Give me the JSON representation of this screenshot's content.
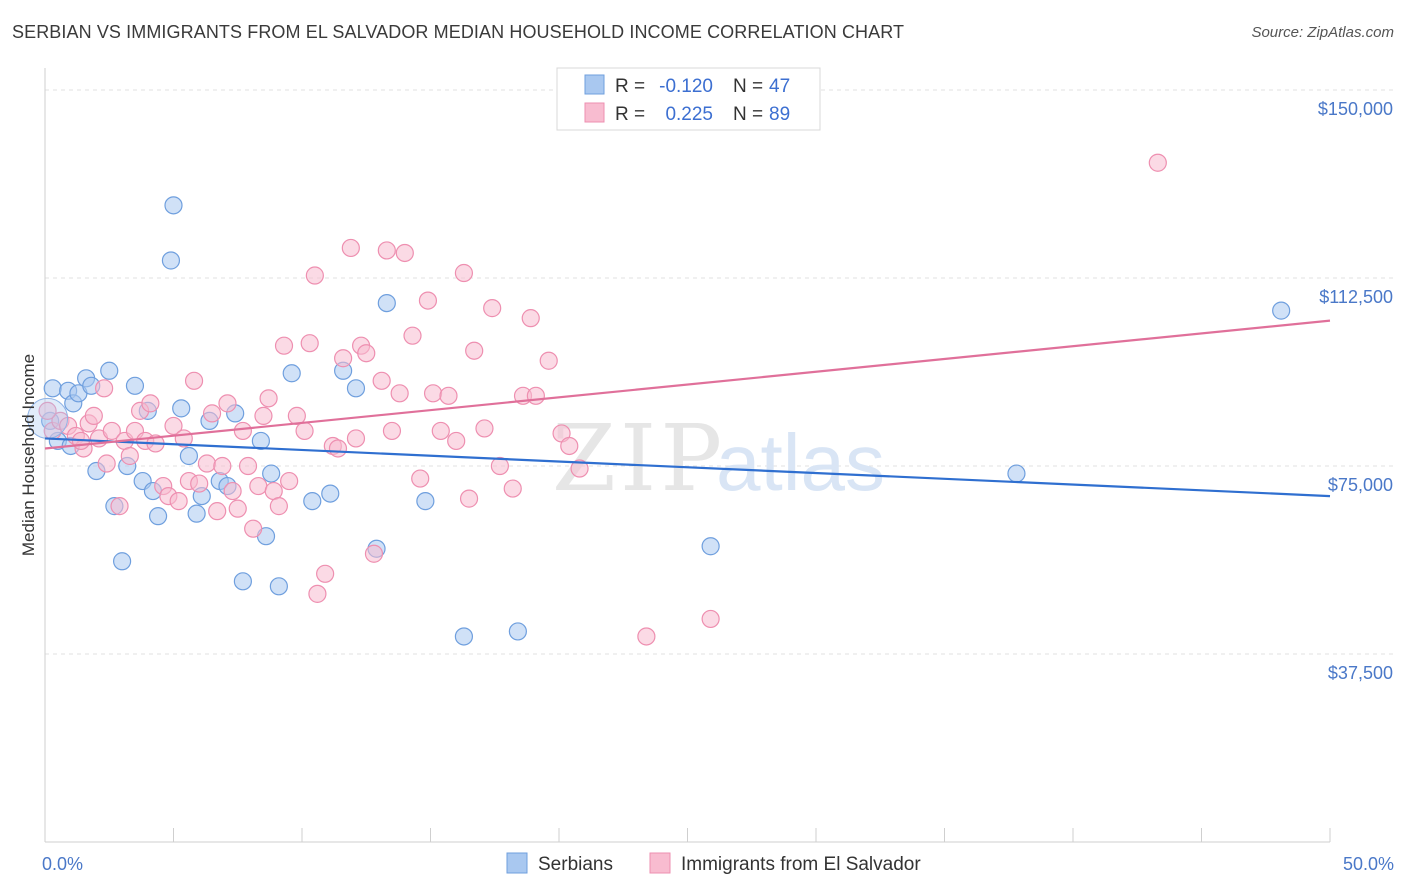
{
  "title": "SERBIAN VS IMMIGRANTS FROM EL SALVADOR MEDIAN HOUSEHOLD INCOME CORRELATION CHART",
  "source": "Source: ZipAtlas.com",
  "watermark": {
    "zip": "ZIP",
    "atlas": "atlas"
  },
  "chart_data": {
    "type": "scatter",
    "ylabel": "Median Household Income",
    "xlim": [
      0,
      50
    ],
    "ylim": [
      0,
      153000
    ],
    "x_tick_labels": [
      "0.0%",
      "50.0%"
    ],
    "y_ticks": [
      {
        "value": 37500,
        "label": "$37,500"
      },
      {
        "value": 75000,
        "label": "$75,000"
      },
      {
        "value": 112500,
        "label": "$112,500"
      },
      {
        "value": 150000,
        "label": "$150,000"
      }
    ],
    "grid": true,
    "legend": [
      {
        "series": "Serbians",
        "r_label": "R =",
        "r_value": "-0.120",
        "n_label": "N =",
        "n_value": "47",
        "color": "#a9c8f0",
        "stroke": "#6f9fde"
      },
      {
        "series": "Immigrants from El Salvador",
        "r_label": "R =",
        "r_value": "0.225",
        "n_label": "N =",
        "n_value": "89",
        "color": "#f8bcd0",
        "stroke": "#ee8fb0"
      }
    ],
    "series": [
      {
        "name": "Serbians",
        "color": "#a9c8f0",
        "stroke": "#6f9fde",
        "trend": {
          "x": [
            0,
            50
          ],
          "y": [
            80500,
            69000
          ],
          "color": "#2f6fd0"
        },
        "points": [
          [
            0.2,
            84000
          ],
          [
            0.3,
            90500
          ],
          [
            0.9,
            90000
          ],
          [
            1.1,
            87500
          ],
          [
            1.3,
            89500
          ],
          [
            1.6,
            92500
          ],
          [
            1.8,
            91000
          ],
          [
            2.0,
            74000
          ],
          [
            2.5,
            94000
          ],
          [
            2.7,
            67000
          ],
          [
            3.0,
            56000
          ],
          [
            3.2,
            75000
          ],
          [
            3.5,
            91000
          ],
          [
            3.8,
            72000
          ],
          [
            4.0,
            86000
          ],
          [
            4.2,
            70000
          ],
          [
            4.4,
            65000
          ],
          [
            4.9,
            116000
          ],
          [
            5.0,
            127000
          ],
          [
            5.3,
            86500
          ],
          [
            5.6,
            77000
          ],
          [
            5.9,
            65500
          ],
          [
            6.1,
            69000
          ],
          [
            6.4,
            84000
          ],
          [
            6.8,
            72000
          ],
          [
            7.1,
            71000
          ],
          [
            7.4,
            85500
          ],
          [
            7.7,
            52000
          ],
          [
            8.4,
            80000
          ],
          [
            8.6,
            61000
          ],
          [
            8.8,
            73500
          ],
          [
            9.1,
            51000
          ],
          [
            9.6,
            93500
          ],
          [
            10.4,
            68000
          ],
          [
            11.1,
            69500
          ],
          [
            11.6,
            94000
          ],
          [
            12.1,
            90500
          ],
          [
            12.9,
            58500
          ],
          [
            13.3,
            107500
          ],
          [
            14.8,
            68000
          ],
          [
            16.3,
            41000
          ],
          [
            18.4,
            42000
          ],
          [
            25.9,
            59000
          ],
          [
            37.8,
            73500
          ],
          [
            48.1,
            106000
          ],
          [
            0.5,
            80000
          ],
          [
            1.0,
            79000
          ]
        ]
      },
      {
        "name": "Immigrants from El Salvador",
        "color": "#f8bcd0",
        "stroke": "#ee8fb0",
        "trend": {
          "x": [
            0,
            50
          ],
          "y": [
            78500,
            104000
          ],
          "color": "#e0709a"
        },
        "points": [
          [
            0.3,
            82000
          ],
          [
            0.6,
            84000
          ],
          [
            0.9,
            83000
          ],
          [
            1.2,
            81000
          ],
          [
            1.5,
            78500
          ],
          [
            1.7,
            83500
          ],
          [
            1.9,
            85000
          ],
          [
            2.1,
            80500
          ],
          [
            2.3,
            90500
          ],
          [
            2.6,
            82000
          ],
          [
            2.9,
            67000
          ],
          [
            3.1,
            80000
          ],
          [
            3.3,
            77000
          ],
          [
            3.5,
            82000
          ],
          [
            3.7,
            86000
          ],
          [
            3.9,
            80000
          ],
          [
            4.1,
            87500
          ],
          [
            4.3,
            79500
          ],
          [
            4.6,
            71000
          ],
          [
            4.8,
            69000
          ],
          [
            5.0,
            83000
          ],
          [
            5.2,
            68000
          ],
          [
            5.4,
            80500
          ],
          [
            5.6,
            72000
          ],
          [
            5.8,
            92000
          ],
          [
            6.0,
            71500
          ],
          [
            6.3,
            75500
          ],
          [
            6.5,
            85500
          ],
          [
            6.7,
            66000
          ],
          [
            6.9,
            75000
          ],
          [
            7.1,
            87500
          ],
          [
            7.3,
            70000
          ],
          [
            7.5,
            66500
          ],
          [
            7.7,
            82000
          ],
          [
            7.9,
            75000
          ],
          [
            8.1,
            62500
          ],
          [
            8.3,
            71000
          ],
          [
            8.5,
            85000
          ],
          [
            8.7,
            88500
          ],
          [
            8.9,
            70000
          ],
          [
            9.1,
            67000
          ],
          [
            9.3,
            99000
          ],
          [
            9.5,
            72000
          ],
          [
            9.8,
            85000
          ],
          [
            10.1,
            82000
          ],
          [
            10.3,
            99500
          ],
          [
            10.5,
            113000
          ],
          [
            10.6,
            49500
          ],
          [
            10.9,
            53500
          ],
          [
            11.2,
            79000
          ],
          [
            11.4,
            78500
          ],
          [
            11.6,
            96500
          ],
          [
            11.9,
            118500
          ],
          [
            12.1,
            80500
          ],
          [
            12.3,
            99000
          ],
          [
            12.5,
            97500
          ],
          [
            12.8,
            57500
          ],
          [
            13.1,
            92000
          ],
          [
            13.3,
            118000
          ],
          [
            13.5,
            82000
          ],
          [
            13.8,
            89500
          ],
          [
            14.0,
            117500
          ],
          [
            14.3,
            101000
          ],
          [
            14.6,
            72500
          ],
          [
            14.9,
            108000
          ],
          [
            15.1,
            89500
          ],
          [
            15.4,
            82000
          ],
          [
            15.7,
            89000
          ],
          [
            16.0,
            80000
          ],
          [
            16.3,
            113500
          ],
          [
            16.5,
            68500
          ],
          [
            16.7,
            98000
          ],
          [
            17.1,
            82500
          ],
          [
            17.4,
            106500
          ],
          [
            17.7,
            75000
          ],
          [
            18.2,
            70500
          ],
          [
            18.6,
            89000
          ],
          [
            18.9,
            104500
          ],
          [
            19.1,
            89000
          ],
          [
            19.6,
            96000
          ],
          [
            20.1,
            81500
          ],
          [
            20.4,
            79000
          ],
          [
            20.8,
            74500
          ],
          [
            23.4,
            41000
          ],
          [
            25.9,
            44500
          ],
          [
            43.3,
            135500
          ],
          [
            0.1,
            86000
          ],
          [
            1.4,
            80000
          ],
          [
            2.4,
            75500
          ]
        ]
      }
    ]
  }
}
